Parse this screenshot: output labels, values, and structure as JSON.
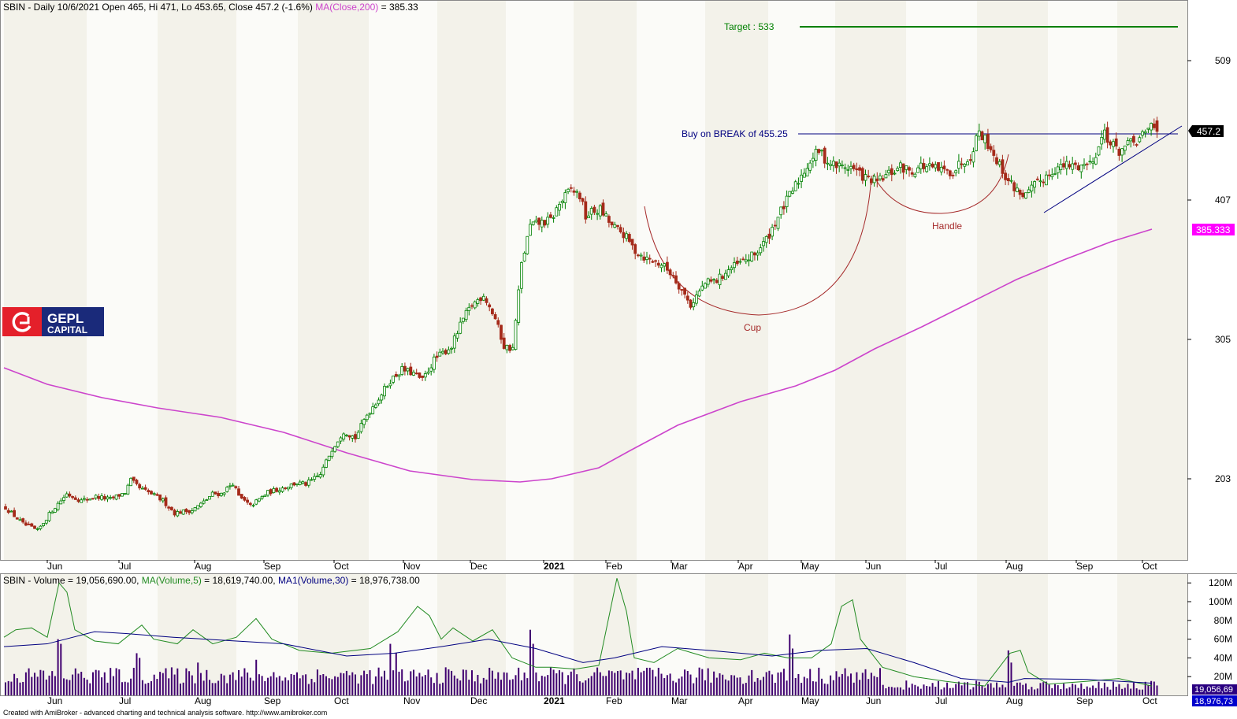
{
  "header": {
    "price_text": "SBIN - Daily 10/6/2021 Open 465, Hi 471, Lo 453.65, Close 457.2 (-1.6%)",
    "ma_text": "MA(Close,200)",
    "ma_value_text": "= 385.33",
    "volume_text": "SBIN - Volume = 19,056,690.00,",
    "vol_ma5_text": "MA(Volume,5)",
    "vol_ma5_value_text": "= 18,619,740.00,",
    "vol_ma30_text": "MA1(Volume,30)",
    "vol_ma30_value_text": "= 18,976,738.00"
  },
  "logo": {
    "line1": "GEPL",
    "line2": "CAPITAL"
  },
  "annotations": {
    "target": "Target  : 533",
    "buy": "Buy on BREAK of 455.25",
    "cup": "Cup",
    "handle": "Handle"
  },
  "price_labels": {
    "close": "457.2",
    "ma": "385.333"
  },
  "volume_labels": {
    "current": "19,056,69",
    "ma30": "18,976,73"
  },
  "footer": "Created with AmiBroker - advanced charting and technical analysis software. http://www.amibroker.com",
  "colors": {
    "up": "#008000",
    "down": "#a52a1a",
    "ma200": "#cc44cc",
    "target_line": "#008000",
    "buy_line": "#000080",
    "cup": "#a52a2a",
    "trend": "#000080",
    "vol_bar": "#400070",
    "vol_ma5": "#228b22",
    "vol_ma30": "#000080",
    "logo_red": "#e4202a",
    "logo_blue": "#1a2a7a"
  },
  "chart_data": {
    "type": "candlestick",
    "symbol": "SBIN",
    "last": {
      "date": "10/6/2021",
      "open": 465,
      "high": 471,
      "low": 453.65,
      "close": 457.2,
      "change_pct": -1.6
    },
    "price_axis": {
      "ticks": [
        203,
        305,
        407,
        509
      ],
      "range": [
        155,
        540
      ]
    },
    "volume_axis": {
      "ticks": [
        "20M",
        "40M",
        "60M",
        "80M",
        "100M",
        "120M"
      ],
      "range": [
        0,
        125
      ]
    },
    "months": [
      "Jun",
      "Jul",
      "Aug",
      "Sep",
      "Oct",
      "Nov",
      "Dec",
      "2021",
      "Feb",
      "Mar",
      "Apr",
      "May",
      "Jun",
      "Jul",
      "Aug",
      "Sep",
      "Oct"
    ],
    "price_path": [
      [
        0,
        182
      ],
      [
        6,
        170
      ],
      [
        11,
        165
      ],
      [
        16,
        180
      ],
      [
        21,
        192
      ],
      [
        26,
        187
      ],
      [
        31,
        190
      ],
      [
        36,
        188
      ],
      [
        41,
        193
      ],
      [
        43,
        202
      ],
      [
        46,
        196
      ],
      [
        50,
        192
      ],
      [
        54,
        187
      ],
      [
        58,
        178
      ],
      [
        64,
        180
      ],
      [
        68,
        186
      ],
      [
        71,
        192
      ],
      [
        74,
        192
      ],
      [
        78,
        200
      ],
      [
        80,
        190
      ],
      [
        84,
        183
      ],
      [
        90,
        193
      ],
      [
        93,
        195
      ],
      [
        100,
        200
      ],
      [
        103,
        199
      ],
      [
        108,
        206
      ],
      [
        112,
        225
      ],
      [
        116,
        238
      ],
      [
        120,
        233
      ],
      [
        124,
        250
      ],
      [
        128,
        262
      ],
      [
        132,
        275
      ],
      [
        136,
        283
      ],
      [
        140,
        280
      ],
      [
        143,
        275
      ],
      [
        147,
        290
      ],
      [
        150,
        295
      ],
      [
        153,
        300
      ],
      [
        157,
        320
      ],
      [
        160,
        330
      ],
      [
        164,
        338
      ],
      [
        168,
        320
      ],
      [
        171,
        300
      ],
      [
        174,
        298
      ],
      [
        177,
        360
      ],
      [
        180,
        388
      ],
      [
        183,
        390
      ],
      [
        187,
        392
      ],
      [
        190,
        404
      ],
      [
        194,
        415
      ],
      [
        197,
        410
      ],
      [
        199,
        395
      ],
      [
        201,
        398
      ],
      [
        204,
        400
      ],
      [
        208,
        388
      ],
      [
        212,
        382
      ],
      [
        216,
        370
      ],
      [
        220,
        364
      ],
      [
        225,
        360
      ],
      [
        229,
        352
      ],
      [
        232,
        341
      ],
      [
        235,
        330
      ],
      [
        237,
        337
      ],
      [
        240,
        346
      ],
      [
        244,
        348
      ],
      [
        248,
        356
      ],
      [
        253,
        362
      ],
      [
        257,
        367
      ],
      [
        261,
        378
      ],
      [
        265,
        395
      ],
      [
        269,
        410
      ],
      [
        273,
        425
      ],
      [
        276,
        436
      ],
      [
        279,
        443
      ],
      [
        282,
        435
      ],
      [
        285,
        432
      ],
      [
        290,
        431
      ],
      [
        295,
        423
      ],
      [
        299,
        420
      ],
      [
        303,
        426
      ],
      [
        307,
        431
      ],
      [
        311,
        428
      ],
      [
        314,
        432
      ],
      [
        318,
        430
      ],
      [
        322,
        428
      ],
      [
        325,
        428
      ],
      [
        328,
        435
      ],
      [
        331,
        440
      ],
      [
        334,
        458
      ],
      [
        338,
        445
      ],
      [
        341,
        432
      ],
      [
        344,
        421
      ],
      [
        347,
        414
      ],
      [
        350,
        410
      ],
      [
        353,
        417
      ],
      [
        356,
        423
      ],
      [
        360,
        430
      ],
      [
        364,
        432
      ],
      [
        368,
        432
      ],
      [
        372,
        434
      ],
      [
        375,
        446
      ],
      [
        377,
        458
      ],
      [
        379,
        448
      ],
      [
        382,
        443
      ],
      [
        385,
        447
      ],
      [
        388,
        450
      ],
      [
        391,
        455
      ],
      [
        393,
        462
      ],
      [
        395,
        457
      ]
    ],
    "buy_level": 455.25,
    "target": 533,
    "ma200": {
      "name": "MA(Close,200)",
      "last": 385.333
    },
    "volume": {
      "last": 19056690,
      "ma5": 18619740,
      "ma30": 18976738
    }
  }
}
